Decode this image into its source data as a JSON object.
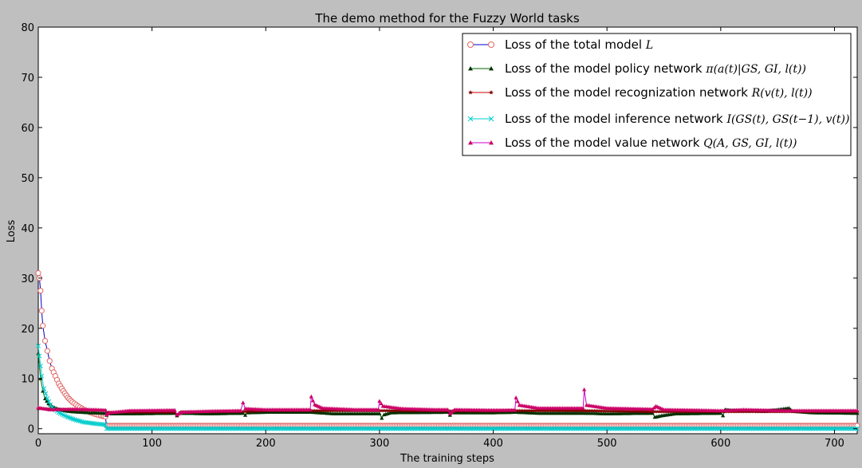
{
  "chart_data": {
    "type": "line",
    "title": "The demo method for the Fuzzy World tasks",
    "xlabel": "The training steps",
    "ylabel": "Loss",
    "xlim": [
      0,
      720
    ],
    "ylim": [
      -1,
      80
    ],
    "xticks": [
      0,
      100,
      200,
      300,
      400,
      500,
      600,
      700
    ],
    "yticks": [
      0,
      10,
      20,
      30,
      40,
      50,
      60,
      70,
      80
    ],
    "grid": false,
    "legend_position": "top-right",
    "series": [
      {
        "name": "Loss of the total model",
        "math": "L",
        "line_color": "#0000cc",
        "marker": "circle-open",
        "marker_color": "#e06666",
        "points": [
          [
            0,
            31
          ],
          [
            1,
            30
          ],
          [
            2,
            27.5
          ],
          [
            3,
            23.5
          ],
          [
            4,
            20.5
          ],
          [
            6,
            17.5
          ],
          [
            8,
            15.5
          ],
          [
            10,
            13.5
          ],
          [
            12,
            12
          ],
          [
            15,
            10.5
          ],
          [
            18,
            9
          ],
          [
            22,
            7.5
          ],
          [
            26,
            6.2
          ],
          [
            30,
            5.3
          ],
          [
            35,
            4.5
          ],
          [
            40,
            3.8
          ],
          [
            45,
            3.3
          ],
          [
            50,
            2.9
          ],
          [
            55,
            2.6
          ],
          [
            59,
            2.4
          ],
          [
            60,
            0.6
          ],
          [
            100,
            0.6
          ],
          [
            200,
            0.6
          ],
          [
            300,
            0.6
          ],
          [
            400,
            0.6
          ],
          [
            500,
            0.6
          ],
          [
            600,
            0.6
          ],
          [
            720,
            0.6
          ]
        ]
      },
      {
        "name": "Loss of the model policy network",
        "math": "π(a(t)|GS, GI, l(t))",
        "line_color": "#006600",
        "marker": "triangle",
        "marker_color": "#003300",
        "points": [
          [
            0,
            15
          ],
          [
            2,
            10
          ],
          [
            4,
            7.5
          ],
          [
            6,
            6
          ],
          [
            9,
            5
          ],
          [
            13,
            4.3
          ],
          [
            20,
            3.7
          ],
          [
            30,
            3.4
          ],
          [
            45,
            3.2
          ],
          [
            59,
            3.1
          ],
          [
            60,
            2.7
          ],
          [
            62,
            3
          ],
          [
            80,
            3
          ],
          [
            120,
            3.1
          ],
          [
            122,
            2.6
          ],
          [
            124,
            3.1
          ],
          [
            150,
            3
          ],
          [
            180,
            3.1
          ],
          [
            182,
            2.7
          ],
          [
            184,
            3.2
          ],
          [
            200,
            3.3
          ],
          [
            240,
            3.3
          ],
          [
            260,
            3
          ],
          [
            300,
            3
          ],
          [
            302,
            2.1
          ],
          [
            304,
            2.8
          ],
          [
            310,
            3.2
          ],
          [
            360,
            3.3
          ],
          [
            362,
            2.7
          ],
          [
            364,
            3.2
          ],
          [
            400,
            3.2
          ],
          [
            420,
            3.3
          ],
          [
            440,
            3.1
          ],
          [
            480,
            3.1
          ],
          [
            500,
            3
          ],
          [
            540,
            3.1
          ],
          [
            542,
            2.3
          ],
          [
            548,
            2.6
          ],
          [
            560,
            3
          ],
          [
            600,
            3.1
          ],
          [
            602,
            2.6
          ],
          [
            604,
            3.8
          ],
          [
            610,
            3.6
          ],
          [
            640,
            3.5
          ],
          [
            660,
            4.1
          ],
          [
            663,
            3.5
          ],
          [
            680,
            3.2
          ],
          [
            720,
            3.1
          ]
        ]
      },
      {
        "name": "Loss of the model recognization network",
        "math": "R(v(t), l(t))",
        "line_color": "#cc0000",
        "marker": "star",
        "marker_color": "#800000",
        "points": [
          [
            0,
            4
          ],
          [
            20,
            3.8
          ],
          [
            59,
            3.7
          ],
          [
            60,
            3.3
          ],
          [
            120,
            3.3
          ],
          [
            122,
            2.6
          ],
          [
            125,
            3.3
          ],
          [
            180,
            3.4
          ],
          [
            200,
            3.6
          ],
          [
            240,
            3.6
          ],
          [
            300,
            3.6
          ],
          [
            400,
            3.5
          ],
          [
            420,
            3.6
          ],
          [
            480,
            3.6
          ],
          [
            540,
            3.4
          ],
          [
            600,
            3.4
          ],
          [
            700,
            3.4
          ],
          [
            720,
            3.4
          ]
        ]
      },
      {
        "name": "Loss of the model inference network",
        "math": "I(GS(t), GS(t−1), v(t))",
        "line_color": "#00cccc",
        "marker": "x",
        "marker_color": "#00cccc",
        "points": [
          [
            0,
            16.5
          ],
          [
            1,
            14.5
          ],
          [
            2,
            12.5
          ],
          [
            3,
            10.5
          ],
          [
            5,
            8
          ],
          [
            8,
            6
          ],
          [
            12,
            4.2
          ],
          [
            18,
            3.2
          ],
          [
            25,
            2.4
          ],
          [
            32,
            1.8
          ],
          [
            40,
            1.3
          ],
          [
            50,
            1
          ],
          [
            59,
            0.8
          ],
          [
            60,
            0
          ],
          [
            100,
            0
          ],
          [
            200,
            0
          ],
          [
            300,
            0
          ],
          [
            400,
            0
          ],
          [
            500,
            0
          ],
          [
            600,
            0
          ],
          [
            720,
            0
          ]
        ]
      },
      {
        "name": "Loss of the model value network",
        "math": "Q(A, GS, GI, l(t))",
        "line_color": "#cc00cc",
        "marker": "triangle",
        "marker_color": "#cc0066",
        "points": [
          [
            0,
            4.2
          ],
          [
            10,
            3.8
          ],
          [
            30,
            3.9
          ],
          [
            50,
            3.8
          ],
          [
            59,
            3.7
          ],
          [
            60,
            2.8
          ],
          [
            63,
            3.2
          ],
          [
            80,
            3.6
          ],
          [
            120,
            3.7
          ],
          [
            122,
            2.8
          ],
          [
            126,
            3.3
          ],
          [
            150,
            3.5
          ],
          [
            178,
            3.6
          ],
          [
            180,
            5.2
          ],
          [
            182,
            4
          ],
          [
            200,
            3.8
          ],
          [
            239,
            3.8
          ],
          [
            240,
            6.4
          ],
          [
            243,
            4.8
          ],
          [
            250,
            4.1
          ],
          [
            280,
            3.8
          ],
          [
            299,
            3.8
          ],
          [
            300,
            5.5
          ],
          [
            303,
            4.5
          ],
          [
            320,
            4
          ],
          [
            350,
            3.8
          ],
          [
            360,
            3.8
          ],
          [
            362,
            3
          ],
          [
            366,
            3.8
          ],
          [
            400,
            3.7
          ],
          [
            419,
            3.7
          ],
          [
            420,
            6.2
          ],
          [
            423,
            4.7
          ],
          [
            440,
            4.1
          ],
          [
            479,
            4.1
          ],
          [
            480,
            7.8
          ],
          [
            482,
            4.7
          ],
          [
            500,
            4.1
          ],
          [
            540,
            3.9
          ],
          [
            543,
            4.5
          ],
          [
            550,
            3.8
          ],
          [
            580,
            3.7
          ],
          [
            600,
            3.6
          ],
          [
            620,
            3.8
          ],
          [
            660,
            3.6
          ],
          [
            680,
            3.6
          ],
          [
            720,
            3.6
          ]
        ]
      }
    ]
  }
}
